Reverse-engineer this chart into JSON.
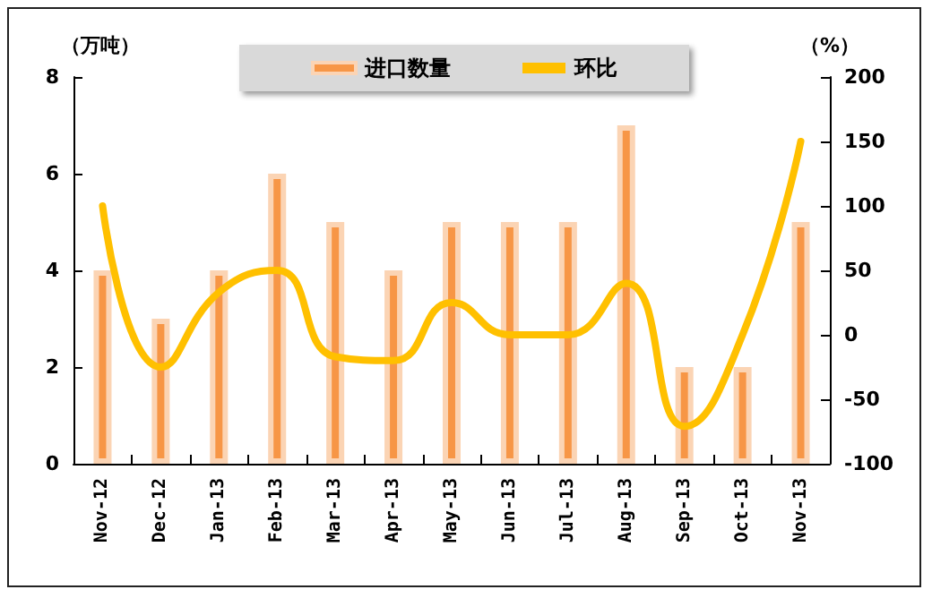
{
  "chart_data": {
    "type": "bar",
    "categories": [
      "Nov-12",
      "Dec-12",
      "Jan-13",
      "Feb-13",
      "Mar-13",
      "Apr-13",
      "May-13",
      "Jun-13",
      "Jul-13",
      "Aug-13",
      "Sep-13",
      "Oct-13",
      "Nov-13"
    ],
    "series": [
      {
        "name": "进口数量",
        "color": "#f79646",
        "values": [
          4,
          3,
          4,
          6,
          5,
          4,
          5,
          5,
          5,
          7,
          2,
          2,
          5
        ]
      },
      {
        "name": "环比",
        "type": "line",
        "axis": "y2",
        "color": "#ffc000",
        "values": [
          100,
          -25,
          33,
          50,
          -17,
          -20,
          25,
          0,
          0,
          40,
          -71,
          0,
          150
        ]
      }
    ],
    "ylabel": "（万吨）",
    "y2label": "（%）",
    "ylim": [
      0,
      8
    ],
    "yticks": [
      0,
      2,
      4,
      6,
      8
    ],
    "y2lim": [
      -100,
      200
    ],
    "y2ticks": [
      -100,
      -50,
      0,
      50,
      100,
      150,
      200
    ],
    "grid": false,
    "legend": "top",
    "marker": "none",
    "line_style": "solid"
  }
}
